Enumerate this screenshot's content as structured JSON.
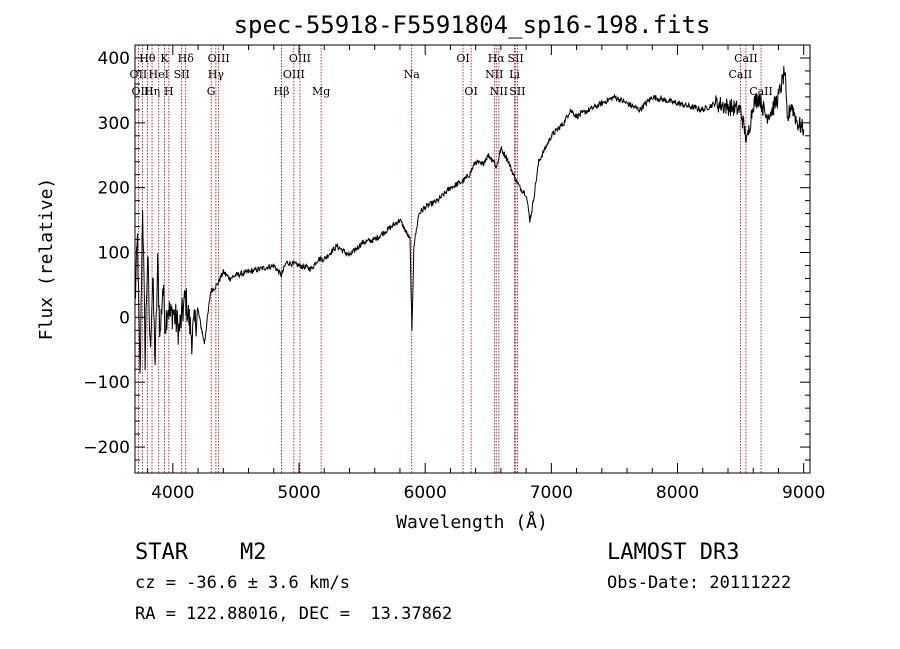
{
  "chart_data": {
    "type": "line",
    "title": "spec-55918-F5591804_sp16-198.fits",
    "xlabel": "Wavelength (Å)",
    "ylabel": "Flux (relative)",
    "xlim": [
      3700,
      9050
    ],
    "ylim": [
      -240,
      420
    ],
    "xticks": [
      4000,
      5000,
      6000,
      7000,
      8000,
      9000
    ],
    "yticks": [
      -200,
      -100,
      0,
      100,
      200,
      300,
      400
    ],
    "series": [
      {
        "name": "flux",
        "x": [
          3700,
          3720,
          3740,
          3760,
          3780,
          3800,
          3820,
          3840,
          3860,
          3880,
          3900,
          3920,
          3940,
          3960,
          3980,
          4000,
          4050,
          4100,
          4150,
          4200,
          4250,
          4300,
          4350,
          4400,
          4450,
          4500,
          4600,
          4700,
          4800,
          4860,
          4900,
          5000,
          5100,
          5150,
          5200,
          5300,
          5400,
          5500,
          5600,
          5700,
          5800,
          5880,
          5895,
          5910,
          5950,
          6000,
          6100,
          6200,
          6300,
          6350,
          6400,
          6450,
          6500,
          6550,
          6563,
          6600,
          6650,
          6700,
          6750,
          6800,
          6830,
          6850,
          6900,
          6950,
          7000,
          7050,
          7100,
          7150,
          7200,
          7300,
          7400,
          7500,
          7600,
          7700,
          7800,
          7900,
          8000,
          8100,
          8200,
          8300,
          8400,
          8500,
          8550,
          8600,
          8650,
          8700,
          8750,
          8800,
          8850,
          8870,
          8900,
          8950,
          9000
        ],
        "y": [
          20,
          120,
          -100,
          180,
          -60,
          100,
          -50,
          60,
          -70,
          80,
          -30,
          50,
          -10,
          20,
          0,
          10,
          -20,
          30,
          -30,
          10,
          -40,
          40,
          50,
          70,
          60,
          65,
          70,
          75,
          80,
          65,
          85,
          80,
          75,
          90,
          90,
          110,
          95,
          115,
          120,
          135,
          150,
          120,
          -25,
          110,
          160,
          170,
          180,
          200,
          210,
          220,
          240,
          235,
          250,
          240,
          230,
          260,
          245,
          220,
          200,
          190,
          150,
          170,
          240,
          260,
          280,
          290,
          300,
          320,
          310,
          320,
          330,
          340,
          330,
          320,
          340,
          335,
          330,
          325,
          320,
          330,
          325,
          320,
          270,
          330,
          340,
          310,
          320,
          340,
          380,
          300,
          330,
          300,
          290
        ]
      }
    ],
    "lines": [
      {
        "name": "Hθ",
        "wave": 3798,
        "row": 1
      },
      {
        "name": "OII",
        "wave": 3727,
        "row": 2
      },
      {
        "name": "OIII",
        "wave": 3760,
        "row": 3
      },
      {
        "name": "Hη",
        "wave": 3835,
        "row": 3
      },
      {
        "name": "HeI",
        "wave": 3888,
        "row": 2
      },
      {
        "name": "K",
        "wave": 3934,
        "row": 1
      },
      {
        "name": "H",
        "wave": 3968,
        "row": 3
      },
      {
        "name": "SII",
        "wave": 4070,
        "row": 2
      },
      {
        "name": "Hδ",
        "wave": 4102,
        "row": 1
      },
      {
        "name": "G",
        "wave": 4304,
        "row": 3
      },
      {
        "name": "Hγ",
        "wave": 4341,
        "row": 2
      },
      {
        "name": "OIII",
        "wave": 4363,
        "row": 1
      },
      {
        "name": "Hβ",
        "wave": 4861,
        "row": 3
      },
      {
        "name": "OIII",
        "wave": 4959,
        "row": 2
      },
      {
        "name": "OIII",
        "wave": 5007,
        "row": 1
      },
      {
        "name": "Mg",
        "wave": 5175,
        "row": 3
      },
      {
        "name": "Na",
        "wave": 5893,
        "row": 2
      },
      {
        "name": "OI",
        "wave": 6300,
        "row": 1
      },
      {
        "name": "OI",
        "wave": 6364,
        "row": 3
      },
      {
        "name": "NII",
        "wave": 6548,
        "row": 2
      },
      {
        "name": "Hα",
        "wave": 6563,
        "row": 1
      },
      {
        "name": "NII",
        "wave": 6584,
        "row": 3
      },
      {
        "name": "SII",
        "wave": 6717,
        "row": 1
      },
      {
        "name": "Li",
        "wave": 6708,
        "row": 2
      },
      {
        "name": "SII",
        "wave": 6731,
        "row": 3
      },
      {
        "name": "CaII",
        "wave": 8498,
        "row": 2
      },
      {
        "name": "CaII",
        "wave": 8542,
        "row": 1
      },
      {
        "name": "CaII",
        "wave": 8662,
        "row": 3
      }
    ]
  },
  "info": {
    "object_class": "STAR",
    "subclass": "M2",
    "survey": "LAMOST DR3",
    "redshift": "cz = -36.6 ± 3.6 km/s",
    "obs_date": "Obs-Date: 20111222",
    "coords": "RA = 122.88016, DEC =  13.37862"
  }
}
